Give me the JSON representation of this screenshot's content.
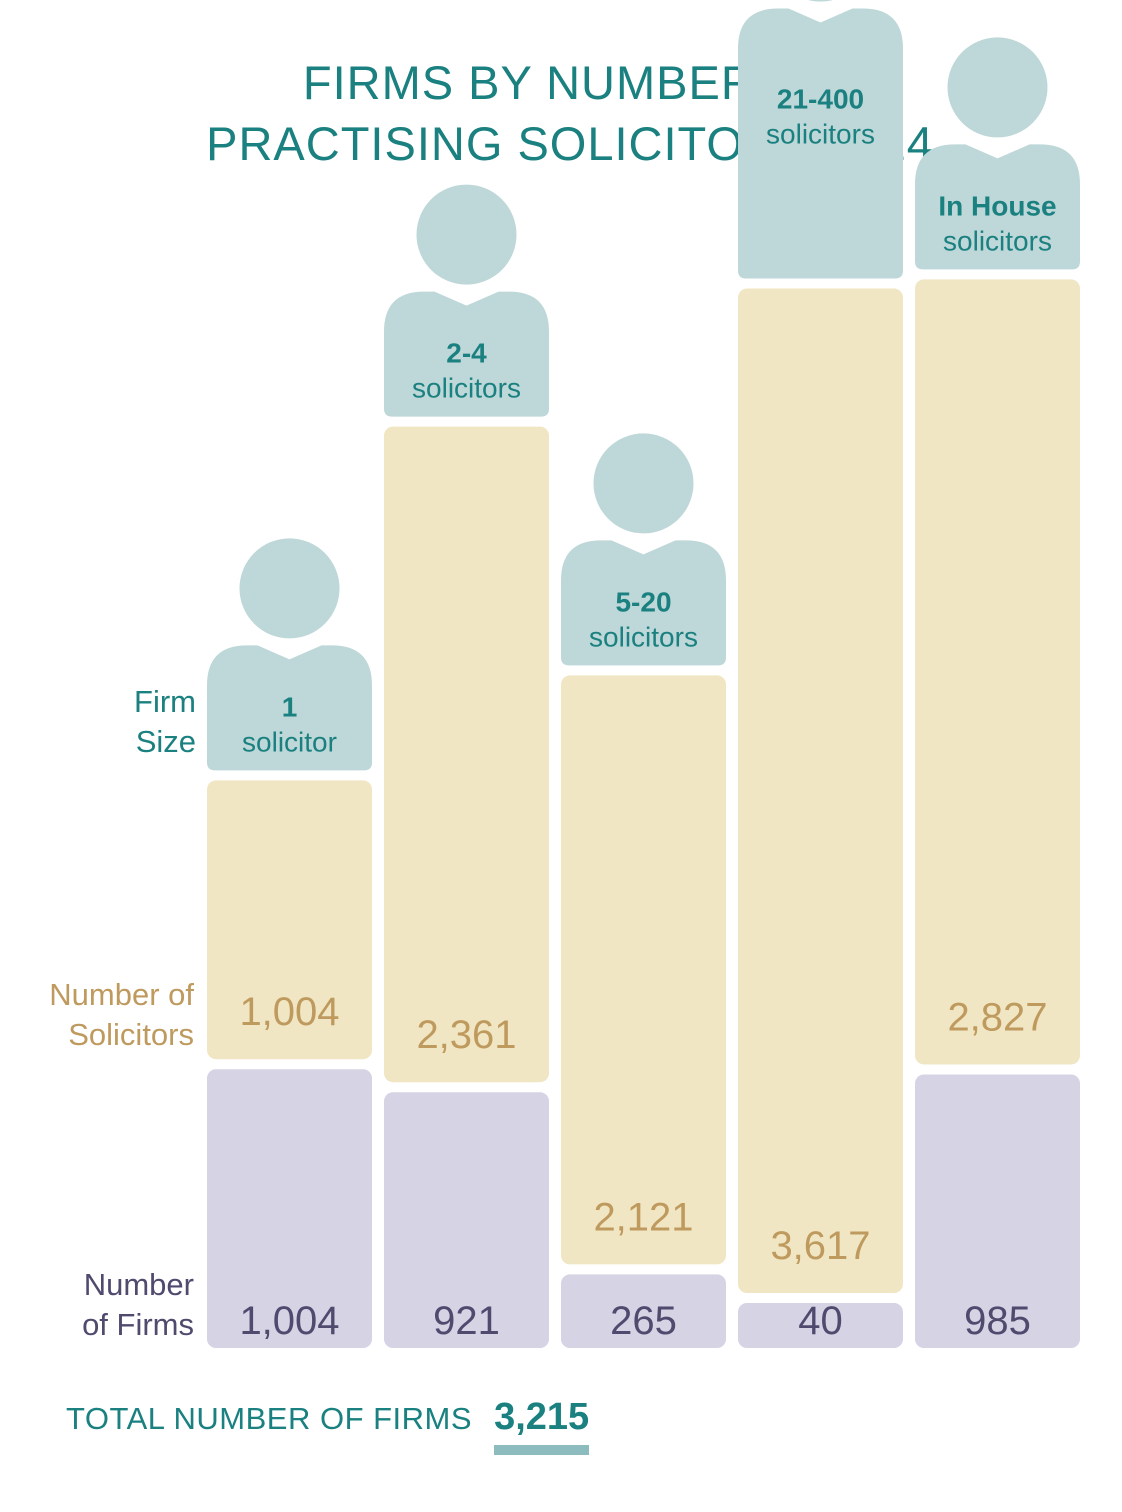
{
  "title": [
    "FIRMS BY NUMBER OF",
    "PRACTISING SOLICITORS 2024"
  ],
  "row_labels": {
    "firm_size": [
      "Firm",
      "Size"
    ],
    "solicitors": [
      "Number of",
      "Solicitors"
    ],
    "firms": [
      "Number",
      "of Firms"
    ]
  },
  "colors": {
    "accent": "#1a8080",
    "person": "#bed7d8",
    "solicitors_bar": "#f1e6c3",
    "solicitors_text": "#bf9a5e",
    "firms_bar": "#d6d3e4",
    "firms_text": "#4f4a6e"
  },
  "chart_data": {
    "type": "bar",
    "categories": [
      {
        "size": "1",
        "unit": "solicitor"
      },
      {
        "size": "2-4",
        "unit": "solicitors"
      },
      {
        "size": "5-20",
        "unit": "solicitors"
      },
      {
        "size": "21-400",
        "unit": "solicitors"
      },
      {
        "size": "In House",
        "unit": "solicitors"
      }
    ],
    "series": [
      {
        "name": "Number of Solicitors",
        "values": [
          1004,
          2361,
          2121,
          3617,
          2827
        ],
        "labels": [
          "1,004",
          "2,361",
          "2,121",
          "3,617",
          "2,827"
        ]
      },
      {
        "name": "Number of Firms",
        "values": [
          1004,
          921,
          265,
          40,
          985
        ],
        "labels": [
          "1,004",
          "921",
          "265",
          "40",
          "985"
        ]
      }
    ]
  },
  "total": {
    "label": "TOTAL NUMBER OF FIRMS",
    "value": "3,215"
  }
}
